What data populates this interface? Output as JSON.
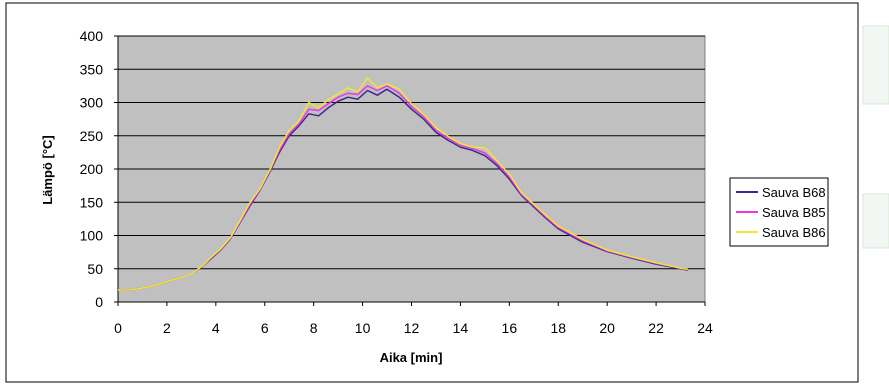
{
  "chart_data": {
    "type": "line",
    "xlabel": "Aika [min]",
    "ylabel": "Lämpö [°C]",
    "xlim": [
      0,
      24
    ],
    "ylim": [
      0,
      400
    ],
    "x_ticks": [
      0,
      2,
      4,
      6,
      8,
      10,
      12,
      14,
      16,
      18,
      20,
      22,
      24
    ],
    "y_ticks": [
      0,
      50,
      100,
      150,
      200,
      250,
      300,
      350,
      400
    ],
    "grid": "horizontal",
    "legend_position": "right",
    "plot_background": "#c0c0c0",
    "series": [
      {
        "name": "Sauva B68",
        "color": "#3b2a8a",
        "points": [
          [
            0,
            18
          ],
          [
            0.5,
            18
          ],
          [
            1,
            21
          ],
          [
            1.5,
            25
          ],
          [
            2,
            31
          ],
          [
            2.5,
            36
          ],
          [
            3,
            42
          ],
          [
            3.5,
            55
          ],
          [
            3.8,
            65
          ],
          [
            4.2,
            78
          ],
          [
            4.6,
            95
          ],
          [
            5,
            120
          ],
          [
            5.4,
            145
          ],
          [
            5.8,
            168
          ],
          [
            6.2,
            195
          ],
          [
            6.6,
            225
          ],
          [
            7,
            250
          ],
          [
            7.4,
            265
          ],
          [
            7.8,
            283
          ],
          [
            8.2,
            280
          ],
          [
            8.6,
            292
          ],
          [
            9,
            302
          ],
          [
            9.4,
            308
          ],
          [
            9.8,
            305
          ],
          [
            10.2,
            318
          ],
          [
            10.6,
            311
          ],
          [
            11,
            320
          ],
          [
            11.5,
            308
          ],
          [
            12,
            290
          ],
          [
            12.5,
            275
          ],
          [
            13,
            255
          ],
          [
            13.5,
            243
          ],
          [
            14,
            233
          ],
          [
            14.5,
            228
          ],
          [
            15,
            220
          ],
          [
            15.5,
            205
          ],
          [
            16,
            185
          ],
          [
            16.5,
            160
          ],
          [
            17,
            143
          ],
          [
            17.5,
            126
          ],
          [
            18,
            110
          ],
          [
            19,
            90
          ],
          [
            20,
            76
          ],
          [
            21,
            66
          ],
          [
            22,
            57
          ],
          [
            23,
            50
          ],
          [
            23.3,
            48
          ]
        ]
      },
      {
        "name": "Sauva B85",
        "color": "#e838e8",
        "points": [
          [
            0,
            18
          ],
          [
            0.5,
            18
          ],
          [
            1,
            21
          ],
          [
            1.5,
            25
          ],
          [
            2,
            31
          ],
          [
            2.5,
            36
          ],
          [
            3,
            42
          ],
          [
            3.5,
            55
          ],
          [
            3.8,
            66
          ],
          [
            4.2,
            79
          ],
          [
            4.6,
            96
          ],
          [
            5,
            121
          ],
          [
            5.4,
            147
          ],
          [
            5.8,
            169
          ],
          [
            6.2,
            197
          ],
          [
            6.6,
            228
          ],
          [
            7,
            253
          ],
          [
            7.4,
            268
          ],
          [
            7.8,
            290
          ],
          [
            8.2,
            288
          ],
          [
            8.6,
            298
          ],
          [
            9,
            308
          ],
          [
            9.4,
            314
          ],
          [
            9.8,
            312
          ],
          [
            10.2,
            325
          ],
          [
            10.6,
            318
          ],
          [
            11,
            325
          ],
          [
            11.5,
            314
          ],
          [
            12,
            294
          ],
          [
            12.5,
            279
          ],
          [
            13,
            258
          ],
          [
            13.5,
            246
          ],
          [
            14,
            236
          ],
          [
            14.5,
            231
          ],
          [
            15,
            224
          ],
          [
            15.5,
            208
          ],
          [
            16,
            188
          ],
          [
            16.5,
            162
          ],
          [
            17,
            145
          ],
          [
            17.5,
            128
          ],
          [
            18,
            112
          ],
          [
            19,
            92
          ],
          [
            20,
            77
          ],
          [
            21,
            67
          ],
          [
            22,
            58
          ],
          [
            23,
            51
          ],
          [
            23.3,
            49
          ]
        ]
      },
      {
        "name": "Sauva B86",
        "color": "#f0e830",
        "points": [
          [
            0,
            18
          ],
          [
            0.5,
            18
          ],
          [
            1,
            21
          ],
          [
            1.5,
            25
          ],
          [
            2,
            31
          ],
          [
            2.5,
            36
          ],
          [
            3,
            42
          ],
          [
            3.5,
            56
          ],
          [
            3.8,
            67
          ],
          [
            4.2,
            80
          ],
          [
            4.6,
            97
          ],
          [
            5,
            123
          ],
          [
            5.4,
            150
          ],
          [
            5.8,
            170
          ],
          [
            6.2,
            198
          ],
          [
            6.6,
            232
          ],
          [
            7,
            258
          ],
          [
            7.4,
            272
          ],
          [
            7.8,
            300
          ],
          [
            8.2,
            292
          ],
          [
            8.6,
            304
          ],
          [
            9,
            313
          ],
          [
            9.4,
            322
          ],
          [
            9.8,
            316
          ],
          [
            10.2,
            337
          ],
          [
            10.6,
            322
          ],
          [
            11,
            328
          ],
          [
            11.5,
            320
          ],
          [
            12,
            298
          ],
          [
            12.5,
            282
          ],
          [
            13,
            262
          ],
          [
            13.5,
            249
          ],
          [
            14,
            238
          ],
          [
            14.5,
            233
          ],
          [
            15,
            232
          ],
          [
            15.5,
            212
          ],
          [
            16,
            192
          ],
          [
            16.5,
            164
          ],
          [
            17,
            147
          ],
          [
            17.5,
            130
          ],
          [
            18,
            114
          ],
          [
            19,
            94
          ],
          [
            20,
            78
          ],
          [
            21,
            68
          ],
          [
            22,
            59
          ],
          [
            23,
            51
          ],
          [
            23.3,
            49
          ]
        ]
      }
    ]
  }
}
